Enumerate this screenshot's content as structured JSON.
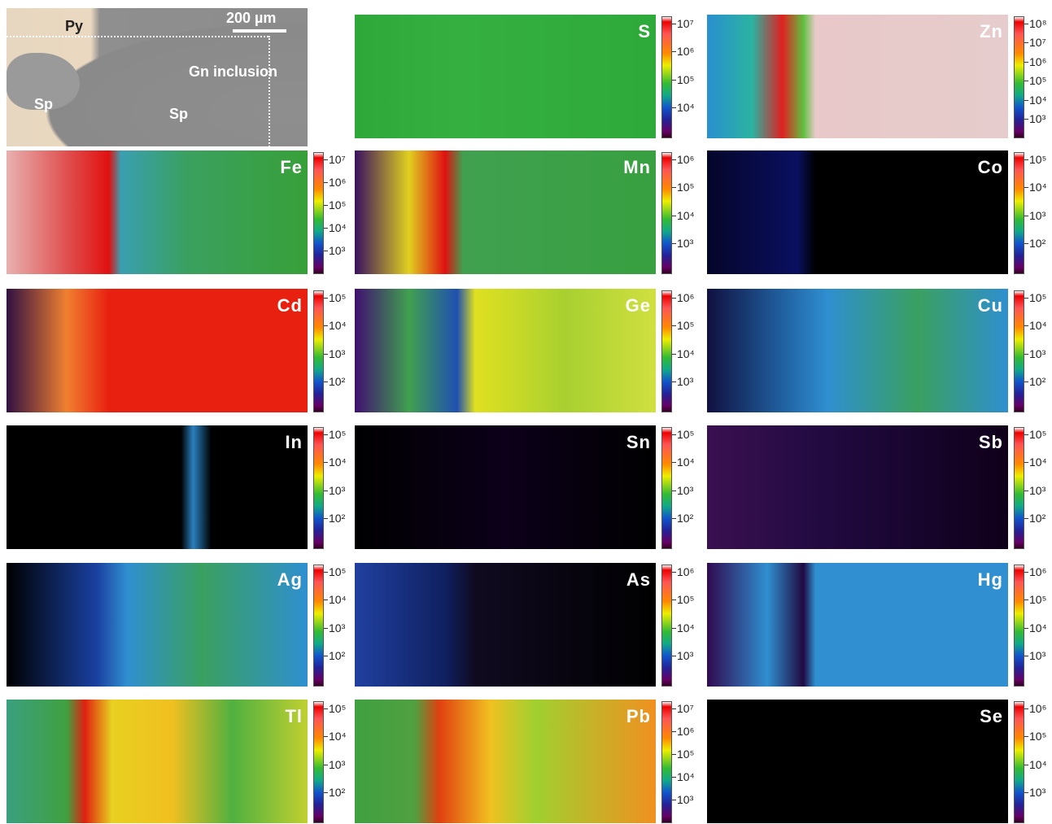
{
  "photo": {
    "labels": [
      "Py",
      "200 µm",
      "Gn inclusion",
      "Sp",
      "Sp"
    ]
  },
  "maps": [
    {
      "element": "S",
      "ticks": [
        "10⁷",
        "10⁶",
        "10⁵",
        "10⁴"
      ]
    },
    {
      "element": "Zn",
      "ticks": [
        "10⁸",
        "10⁷",
        "10⁶",
        "10⁵",
        "10⁴",
        "10³"
      ]
    },
    {
      "element": "Fe",
      "ticks": [
        "10⁷",
        "10⁶",
        "10⁵",
        "10⁴",
        "10³"
      ]
    },
    {
      "element": "Mn",
      "ticks": [
        "10⁶",
        "10⁵",
        "10⁴",
        "10³"
      ]
    },
    {
      "element": "Co",
      "ticks": [
        "10⁵",
        "10⁴",
        "10³",
        "10²"
      ]
    },
    {
      "element": "Cd",
      "ticks": [
        "10⁵",
        "10⁴",
        "10³",
        "10²"
      ]
    },
    {
      "element": "Ge",
      "ticks": [
        "10⁶",
        "10⁵",
        "10⁴",
        "10³"
      ]
    },
    {
      "element": "Cu",
      "ticks": [
        "10⁵",
        "10⁴",
        "10³",
        "10²"
      ]
    },
    {
      "element": "In",
      "ticks": [
        "10⁵",
        "10⁴",
        "10³",
        "10²"
      ]
    },
    {
      "element": "Sn",
      "ticks": [
        "10⁵",
        "10⁴",
        "10³",
        "10²"
      ]
    },
    {
      "element": "Sb",
      "ticks": [
        "10⁵",
        "10⁴",
        "10³",
        "10²"
      ]
    },
    {
      "element": "Ag",
      "ticks": [
        "10⁵",
        "10⁴",
        "10³",
        "10²"
      ]
    },
    {
      "element": "As",
      "ticks": [
        "10⁶",
        "10⁵",
        "10⁴",
        "10³"
      ]
    },
    {
      "element": "Hg",
      "ticks": [
        "10⁶",
        "10⁵",
        "10⁴",
        "10³"
      ]
    },
    {
      "element": "Tl",
      "ticks": [
        "10⁵",
        "10⁴",
        "10³",
        "10²"
      ]
    },
    {
      "element": "Pb",
      "ticks": [
        "10⁷",
        "10⁶",
        "10⁵",
        "10⁴",
        "10³"
      ]
    },
    {
      "element": "Se",
      "ticks": [
        "10⁶",
        "10⁵",
        "10⁴",
        "10³"
      ]
    }
  ]
}
